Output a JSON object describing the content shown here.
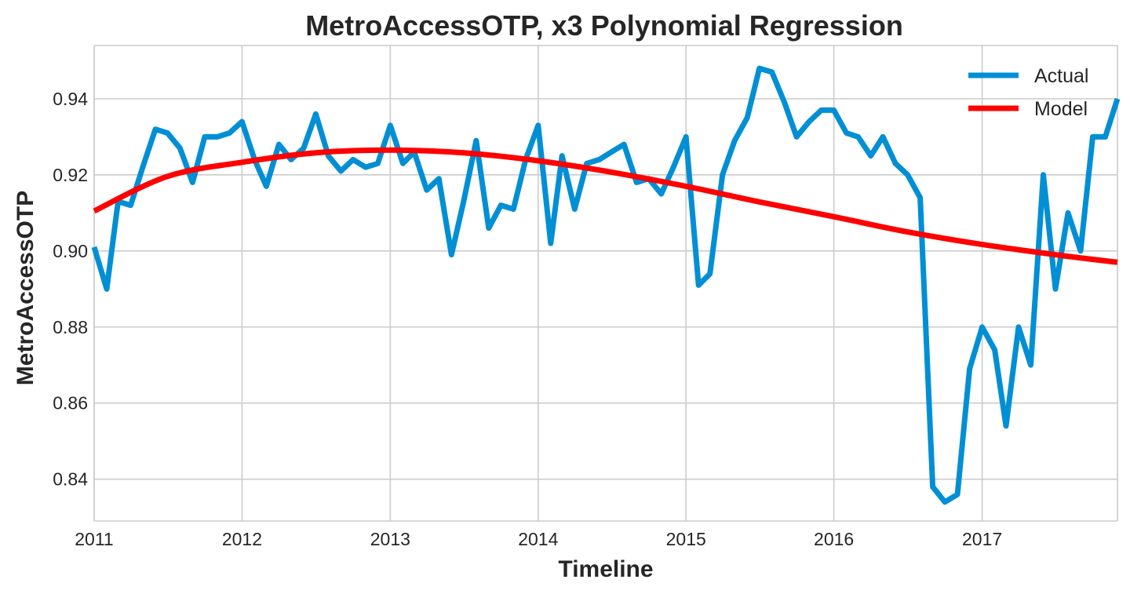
{
  "chart_data": {
    "type": "line",
    "title": "MetroAccessOTP, x3 Polynomial Regression",
    "xlabel": "Timeline",
    "ylabel": "MetroAccessOTP",
    "xlim": [
      "2011-01-01",
      "2017-12-01"
    ],
    "ylim": [
      0.829,
      0.954
    ],
    "x_ticks": [
      "2011",
      "2012",
      "2013",
      "2014",
      "2015",
      "2016",
      "2017"
    ],
    "y_ticks": [
      "0.84",
      "0.86",
      "0.88",
      "0.90",
      "0.92",
      "0.94"
    ],
    "grid": true,
    "legend_position": "top-right",
    "series": [
      {
        "name": "Actual",
        "color": "#008fd5",
        "x": [
          "2011-01-01",
          "2011-02-01",
          "2011-03-01",
          "2011-04-01",
          "2011-05-01",
          "2011-06-01",
          "2011-07-01",
          "2011-08-01",
          "2011-09-01",
          "2011-10-01",
          "2011-11-01",
          "2011-12-01",
          "2012-01-01",
          "2012-02-01",
          "2012-03-01",
          "2012-04-01",
          "2012-05-01",
          "2012-06-01",
          "2012-07-01",
          "2012-08-01",
          "2012-09-01",
          "2012-10-01",
          "2012-11-01",
          "2012-12-01",
          "2013-01-01",
          "2013-02-01",
          "2013-03-01",
          "2013-04-01",
          "2013-05-01",
          "2013-06-01",
          "2013-07-01",
          "2013-08-01",
          "2013-09-01",
          "2013-10-01",
          "2013-11-01",
          "2013-12-01",
          "2014-01-01",
          "2014-02-01",
          "2014-03-01",
          "2014-04-01",
          "2014-05-01",
          "2014-06-01",
          "2014-07-01",
          "2014-08-01",
          "2014-09-01",
          "2014-10-01",
          "2014-11-01",
          "2014-12-01",
          "2015-01-01",
          "2015-02-01",
          "2015-03-01",
          "2015-04-01",
          "2015-05-01",
          "2015-06-01",
          "2015-07-01",
          "2015-08-01",
          "2015-09-01",
          "2015-10-01",
          "2015-11-01",
          "2015-12-01",
          "2016-01-01",
          "2016-02-01",
          "2016-03-01",
          "2016-04-01",
          "2016-05-01",
          "2016-06-01",
          "2016-07-01",
          "2016-08-01",
          "2016-09-01",
          "2016-10-01",
          "2016-11-01",
          "2016-12-01",
          "2017-01-01",
          "2017-02-01",
          "2017-03-01",
          "2017-04-01",
          "2017-05-01",
          "2017-06-01",
          "2017-07-01",
          "2017-08-01",
          "2017-09-01",
          "2017-10-01",
          "2017-11-01",
          "2017-12-01"
        ],
        "y": [
          0.901,
          0.89,
          0.913,
          0.912,
          0.922,
          0.932,
          0.931,
          0.927,
          0.918,
          0.93,
          0.93,
          0.931,
          0.934,
          0.924,
          0.917,
          0.928,
          0.924,
          0.927,
          0.936,
          0.925,
          0.921,
          0.924,
          0.922,
          0.923,
          0.933,
          0.923,
          0.926,
          0.916,
          0.919,
          0.899,
          0.913,
          0.929,
          0.906,
          0.912,
          0.911,
          0.924,
          0.933,
          0.902,
          0.925,
          0.911,
          0.923,
          0.924,
          0.926,
          0.928,
          0.918,
          0.919,
          0.915,
          0.922,
          0.93,
          0.891,
          0.894,
          0.92,
          0.929,
          0.935,
          0.948,
          0.947,
          0.939,
          0.93,
          0.934,
          0.937,
          0.937,
          0.931,
          0.93,
          0.925,
          0.93,
          0.923,
          0.92,
          0.914,
          0.838,
          0.834,
          0.836,
          0.869,
          0.88,
          0.874,
          0.854,
          0.88,
          0.87,
          0.92,
          0.89,
          0.91,
          0.9,
          0.93,
          0.93,
          0.94
        ]
      },
      {
        "name": "Model",
        "color": "#ff0000",
        "x": [
          "2011-01-01",
          "2011-07-01",
          "2012-01-01",
          "2012-07-01",
          "2013-01-01",
          "2013-07-01",
          "2014-01-01",
          "2014-07-01",
          "2015-01-01",
          "2015-07-01",
          "2016-01-01",
          "2016-07-01",
          "2017-01-01",
          "2017-07-01",
          "2017-12-01"
        ],
        "y": [
          0.9105,
          0.9196,
          0.9233,
          0.9258,
          0.9265,
          0.9258,
          0.9237,
          0.9207,
          0.917,
          0.9129,
          0.909,
          0.905,
          0.9017,
          0.899,
          0.897
        ]
      }
    ]
  }
}
